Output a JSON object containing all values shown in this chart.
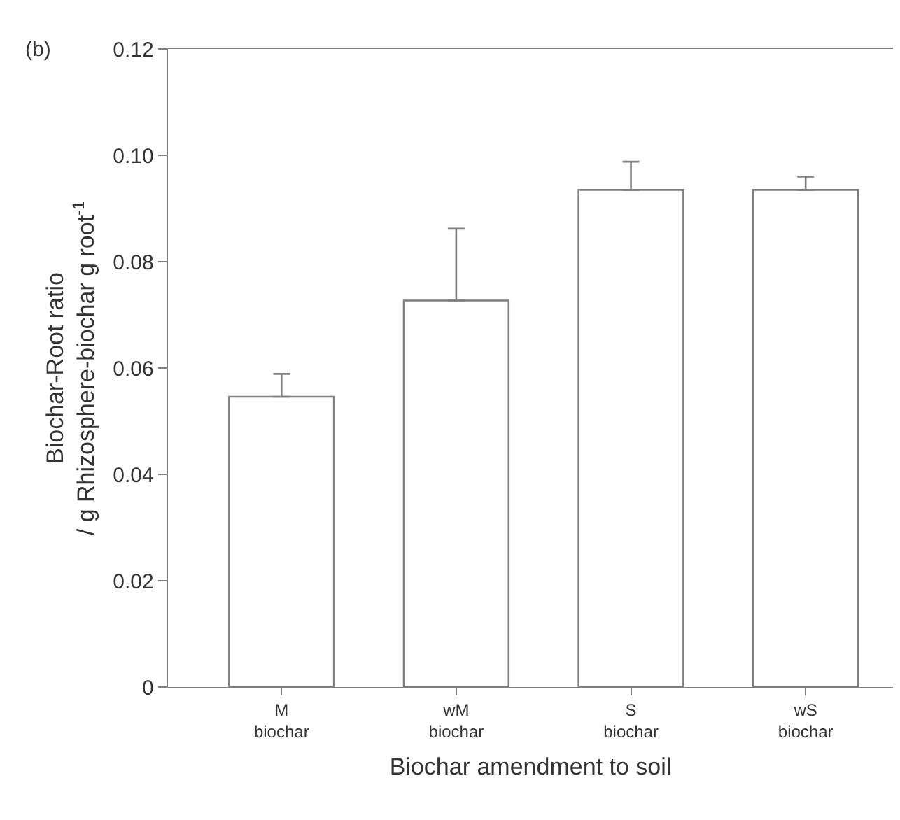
{
  "chart_data": {
    "type": "bar",
    "xlabel": "Biochar amendment to soil",
    "ylabel": "Biochar-Root ratio\n/ g Rhizosphere-biochar g root$^{-1}$",
    "categories": [
      "M\nbiochar",
      "wM\nbiochar",
      "S\nbiochar",
      "wS\nbiochar"
    ],
    "values": [
      0.0546,
      0.0727,
      0.0935,
      0.0935
    ],
    "errors": [
      [
        0.0546,
        0.0589
      ],
      [
        0.0727,
        0.0862
      ],
      [
        0.0935,
        0.0988
      ],
      [
        0.0935,
        0.096
      ]
    ],
    "color": "#ffffff",
    "ylim": [
      0,
      0.12
    ],
    "yticks": [
      0,
      0.02,
      0.04,
      0.06,
      0.08,
      {
        "value": 0.1,
        "label": "0.10"
      },
      0.12
    ],
    "annotations": [
      "(b)"
    ],
    "legend": false
  }
}
